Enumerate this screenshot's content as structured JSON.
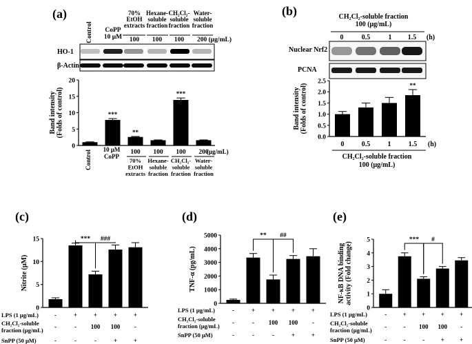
{
  "panels": {
    "a": {
      "label": "(a)"
    },
    "b": {
      "label": "(b)"
    },
    "c": {
      "label": "(c)"
    },
    "d": {
      "label": "(d)"
    },
    "e": {
      "label": "(e)"
    }
  },
  "blot_a": {
    "headers": [
      {
        "text": "Control",
        "rotated": true
      },
      {
        "lines": [
          "CoPP",
          "10 μM"
        ]
      },
      {
        "lines": [
          "70%",
          "EtOH",
          "extracts"
        ],
        "dose": "100"
      },
      {
        "lines": [
          "Hexane-",
          "soluble",
          "fraction"
        ],
        "dose": "100"
      },
      {
        "lines": [
          "CH₂Cl₂-",
          "soluble",
          "fraction"
        ],
        "dose": "100"
      },
      {
        "lines": [
          "Water-",
          "soluble",
          "fraction"
        ],
        "dose": "200 (μg/mL)"
      }
    ],
    "rows": [
      "HO-1",
      "β-Actin"
    ]
  },
  "blot_b": {
    "title_lines": [
      "CH₂Cl₂-soluble fraction",
      "100 (μg/mL)"
    ],
    "times": [
      "0",
      "0.5",
      "1",
      "1.5"
    ],
    "unit": "(h)",
    "rows": [
      "Nuclear Nrf2",
      "PCNA"
    ]
  },
  "chart_data": [
    {
      "id": "a",
      "type": "bar",
      "categories": [
        "Control",
        "10 μM CoPP",
        "70% EtOH extracts",
        "Hexane-soluble fraction",
        "CH₂Cl₂-soluble fraction",
        "Water-soluble fraction"
      ],
      "values": [
        1.0,
        7.8,
        2.6,
        1.6,
        13.9,
        1.6
      ],
      "errors": [
        0.1,
        0.4,
        0.15,
        0.1,
        0.6,
        0.1
      ],
      "sig": [
        "",
        "***",
        "**",
        "",
        "***",
        ""
      ],
      "ylim": [
        0,
        20
      ],
      "yticks": [
        0,
        5,
        10,
        15,
        20
      ],
      "ylabel_lines": [
        "Band intensity",
        "(Folds of control)"
      ],
      "xlabels": [
        {
          "lines": [
            "Control"
          ],
          "rotated": true
        },
        {
          "lines": [
            "10 μM",
            "CoPP"
          ]
        },
        {
          "dose": "100",
          "lines": [
            "70%",
            "EtOH",
            "extracts"
          ]
        },
        {
          "dose": "100",
          "lines": [
            "Hexane-",
            "soluble",
            "fraction"
          ]
        },
        {
          "dose": "100",
          "lines": [
            "CH₂Cl₂-",
            "soluble",
            "fraction"
          ]
        },
        {
          "dose": "200",
          "lines": [
            "Water-",
            "soluble",
            "fraction"
          ]
        }
      ],
      "dose_unit": "(μg/mL)"
    },
    {
      "id": "b",
      "type": "bar",
      "categories": [
        "0",
        "0.5",
        "1",
        "1.5"
      ],
      "values": [
        1.0,
        1.3,
        1.5,
        1.85
      ],
      "errors": [
        0.12,
        0.2,
        0.25,
        0.25
      ],
      "sig": [
        "",
        "",
        "",
        "**"
      ],
      "ylim": [
        0,
        2.5
      ],
      "yticks": [
        "0.0",
        "0.5",
        "1.0",
        "1.5",
        "2.0",
        "2.5"
      ],
      "ylabel_lines": [
        "Band intensity",
        "(Folds of control)"
      ],
      "unit": "(h)",
      "xtitle_lines": [
        "CH₂Cl₂-soluble fraction",
        "100 (μg/mL)"
      ]
    },
    {
      "id": "c",
      "type": "bar",
      "values": [
        1.8,
        13.5,
        7.2,
        12.6,
        13.1
      ],
      "errors": [
        0.3,
        0.5,
        0.7,
        1.0,
        1.0
      ],
      "ylim": [
        0,
        15
      ],
      "yticks": [
        0,
        5,
        10,
        15
      ],
      "ylabel_lines": [
        "Nitrite (μM)"
      ],
      "brackets": [
        {
          "from": 1,
          "to": 2,
          "text": "***"
        },
        {
          "from": 2,
          "to": 3,
          "text": "###"
        }
      ],
      "table": {
        "rows": [
          {
            "label": [
              "LPS (1 μg/mL)"
            ],
            "cells": [
              "-",
              "+",
              "+",
              "+",
              "+"
            ]
          },
          {
            "label": [
              "CH₂Cl₂-soluble",
              "fraction (μg/mL)"
            ],
            "cells": [
              "-",
              "-",
              "100",
              "100",
              "-"
            ]
          },
          {
            "label": [
              "SnPP (50 μM)"
            ],
            "cells": [
              "-",
              "-",
              "-",
              "+",
              "+"
            ]
          }
        ]
      }
    },
    {
      "id": "d",
      "type": "bar",
      "values": [
        250,
        3350,
        1750,
        3250,
        3450
      ],
      "errors": [
        60,
        300,
        320,
        250,
        550
      ],
      "ylim": [
        0,
        5000
      ],
      "yticks": [
        0,
        1000,
        2000,
        3000,
        4000,
        5000
      ],
      "ylabel_lines": [
        "TNF-α (pg/mL)"
      ],
      "brackets": [
        {
          "from": 1,
          "to": 2,
          "text": "**"
        },
        {
          "from": 2,
          "to": 3,
          "text": "##"
        }
      ],
      "table": {
        "rows": [
          {
            "label": [
              "LPS (1 μg/mL)"
            ],
            "cells": [
              "-",
              "+",
              "+",
              "+",
              "+"
            ]
          },
          {
            "label": [
              "CH₂Cl₂-soluble",
              "fraction (μg/mL)"
            ],
            "cells": [
              "-",
              "-",
              "100",
              "100",
              "-"
            ]
          },
          {
            "label": [
              "SnPP (50 μM)"
            ],
            "cells": [
              "-",
              "-",
              "-",
              "+",
              "+"
            ]
          }
        ]
      }
    },
    {
      "id": "e",
      "type": "bar",
      "values": [
        1.0,
        3.75,
        2.1,
        2.85,
        3.45
      ],
      "errors": [
        0.3,
        0.25,
        0.15,
        0.15,
        0.2
      ],
      "ylim": [
        0,
        5
      ],
      "yticks": [
        0,
        1,
        2,
        3,
        4,
        5
      ],
      "ylabel_lines": [
        "NF-κB DNA binding",
        "activity (Fold change)"
      ],
      "brackets": [
        {
          "from": 1,
          "to": 2,
          "text": "***"
        },
        {
          "from": 2,
          "to": 3,
          "text": "#"
        }
      ],
      "table": {
        "rows": [
          {
            "label": [
              "LPS (1 μg/mL)"
            ],
            "cells": [
              "-",
              "+",
              "+",
              "+",
              "+"
            ]
          },
          {
            "label": [
              "CH₂Cl₂-soluble",
              "fraction (μg/mL)"
            ],
            "cells": [
              "-",
              "-",
              "100",
              "100",
              "-"
            ]
          },
          {
            "label": [
              "SnPP (50 μM)"
            ],
            "cells": [
              "-",
              "-",
              "-",
              "+",
              "+"
            ]
          }
        ]
      }
    }
  ]
}
